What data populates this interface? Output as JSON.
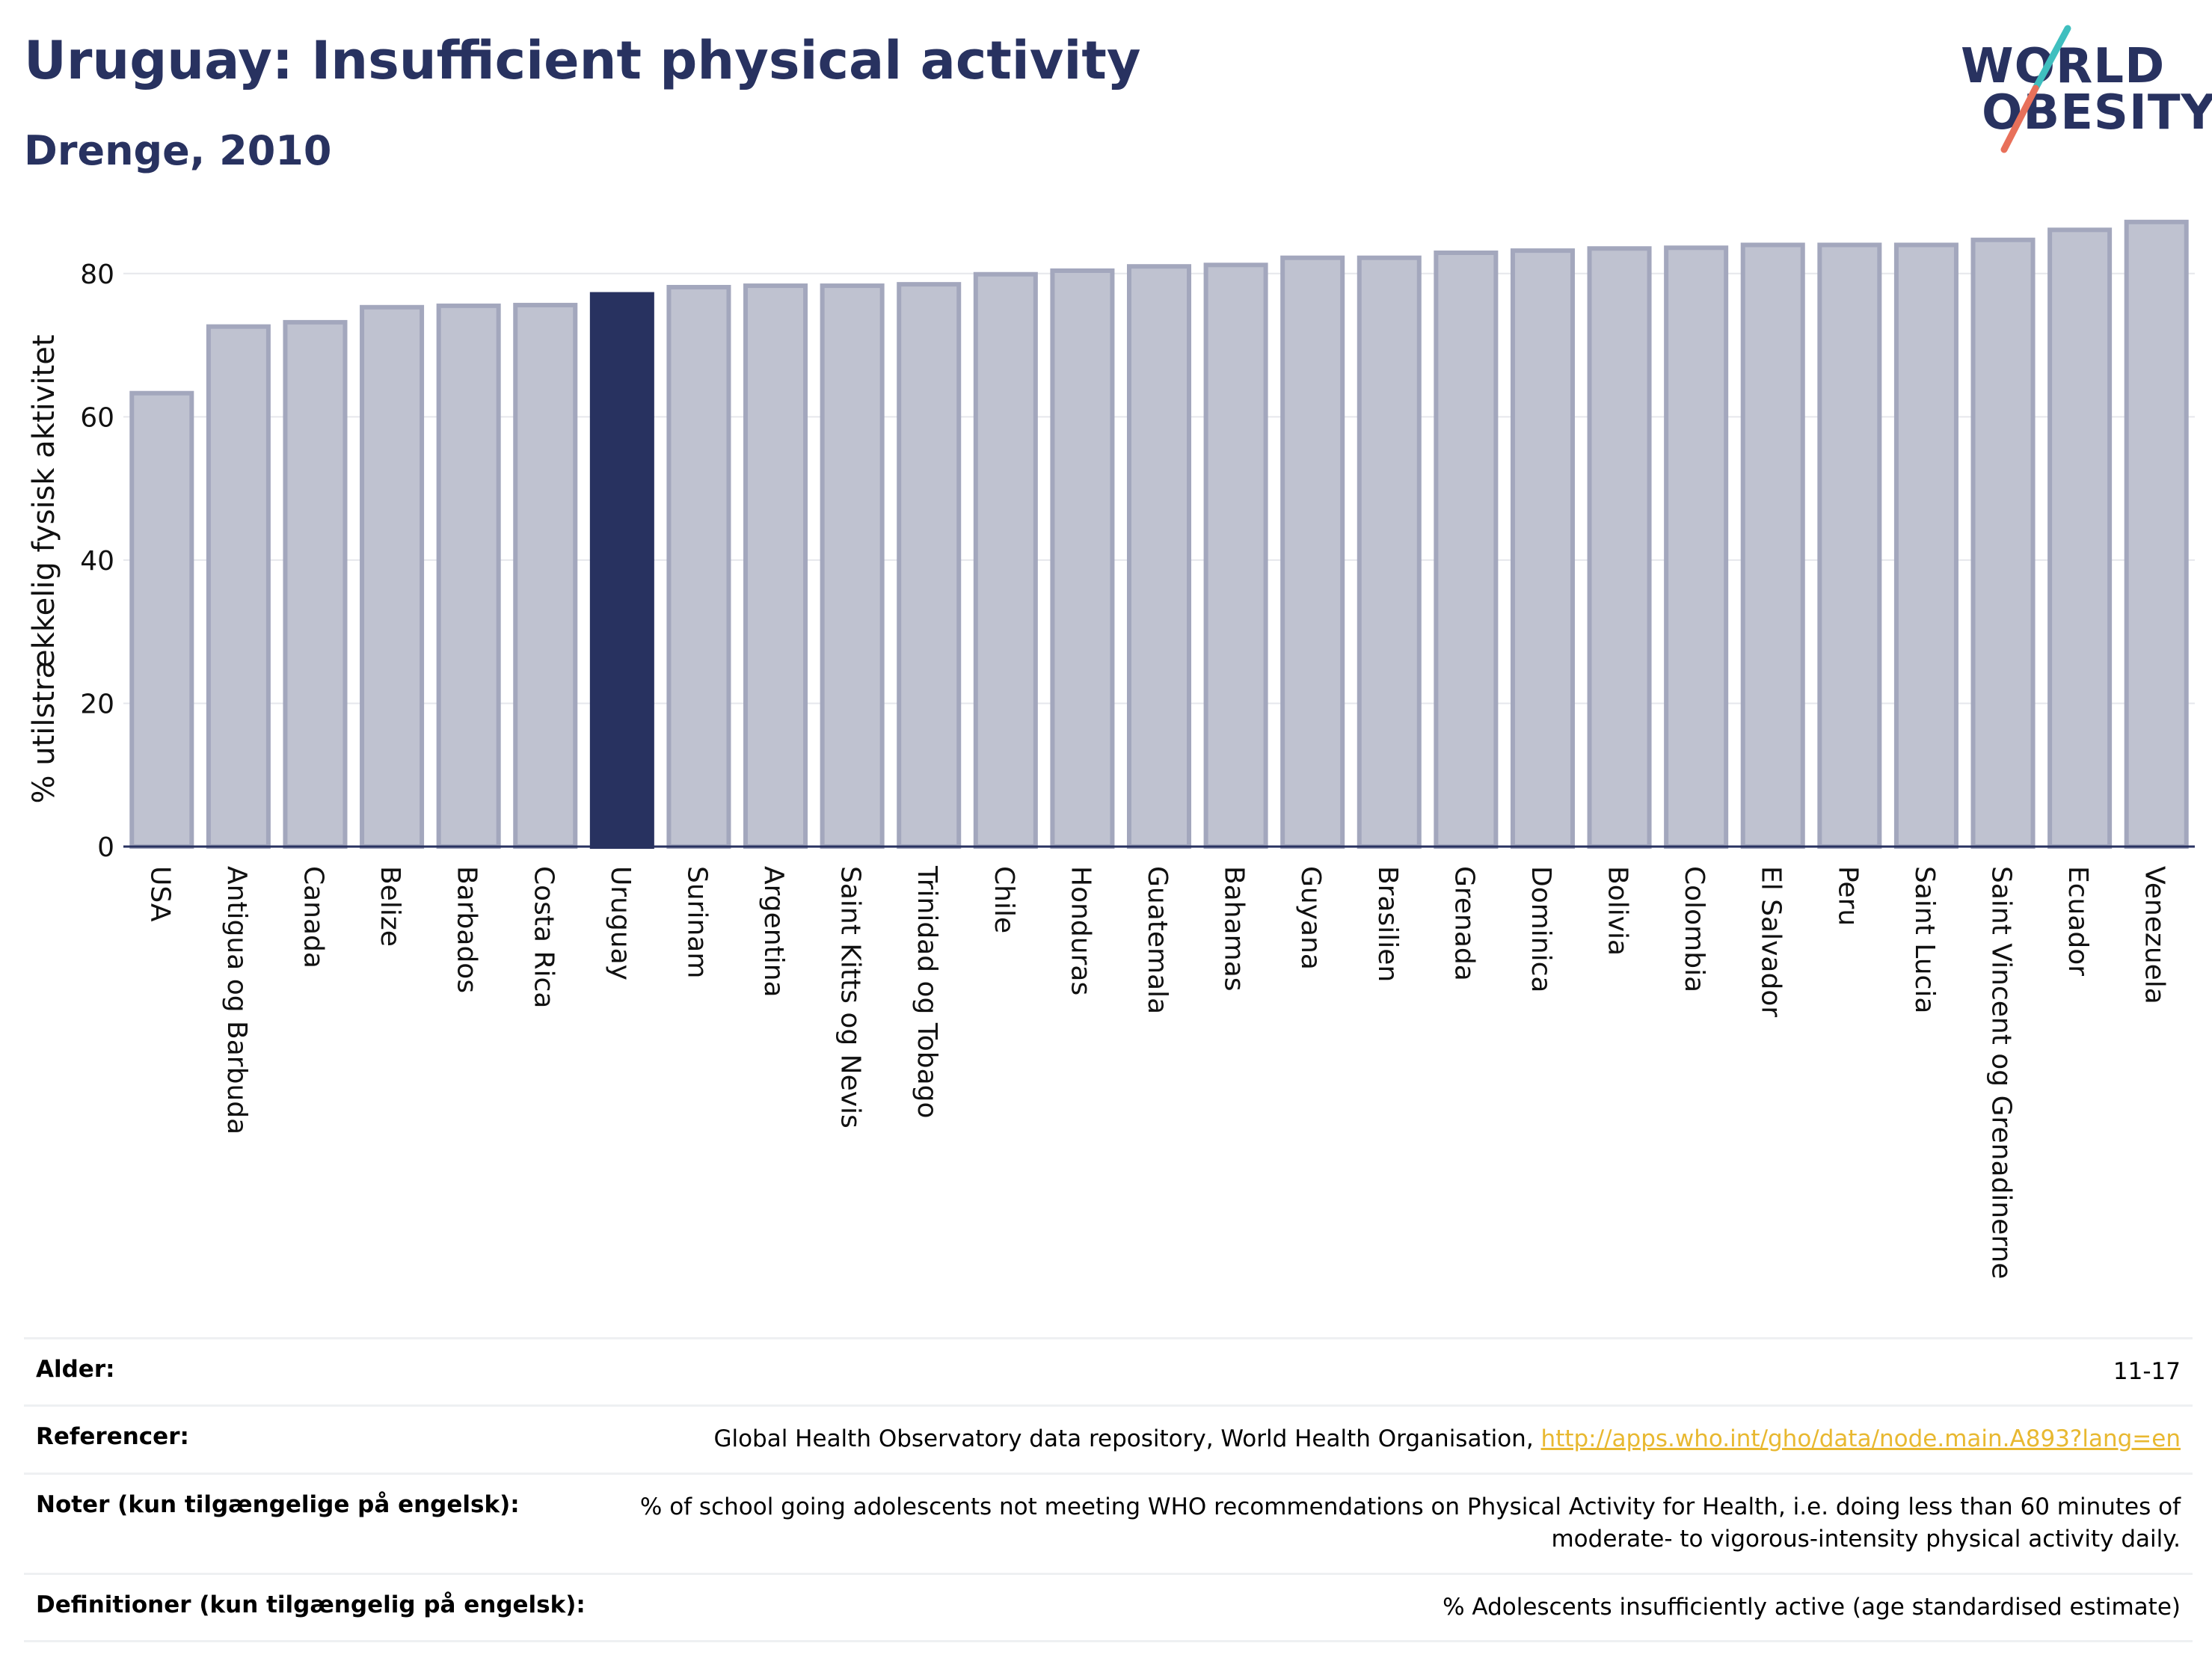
{
  "header": {
    "title": "Uruguay: Insufficient physical activity",
    "subtitle": "Drenge, 2010"
  },
  "logo": {
    "line1": "WORLD",
    "line2": "OBESITY",
    "colors": {
      "navy": "#283260",
      "teal": "#3fbfbf",
      "coral": "#e8705a"
    }
  },
  "chart_data": {
    "type": "bar",
    "ylabel": "% utilstrækkelig fysisk aktivitet",
    "ylim": [
      0,
      90
    ],
    "yticks": [
      0,
      20,
      40,
      60,
      80
    ],
    "grid": true,
    "highlight": "Uruguay",
    "colors": {
      "bar": "#bfc2d0",
      "bar_edge": "#a3a7bd",
      "highlight": "#283260",
      "grid": "#e6e7ec",
      "axis": "#283260"
    },
    "categories": [
      "USA",
      "Antigua og Barbuda",
      "Canada",
      "Belize",
      "Barbados",
      "Costa Rica",
      "Uruguay",
      "Surinam",
      "Argentina",
      "Saint Kitts og Nevis",
      "Trinidad og Tobago",
      "Chile",
      "Honduras",
      "Guatemala",
      "Bahamas",
      "Guyana",
      "Brasilien",
      "Grenada",
      "Dominica",
      "Bolivia",
      "Colombia",
      "El Salvador",
      "Peru",
      "Saint Lucia",
      "Saint Vincent og Grenadinerne",
      "Ecuador",
      "Venezuela"
    ],
    "values": [
      63.3,
      72.6,
      73.2,
      75.3,
      75.5,
      75.6,
      77.1,
      78.1,
      78.3,
      78.3,
      78.5,
      79.9,
      80.4,
      81.0,
      81.2,
      82.2,
      82.2,
      82.9,
      83.2,
      83.5,
      83.6,
      84.0,
      84.0,
      84.0,
      84.7,
      86.1,
      87.2
    ]
  },
  "info_table": {
    "age_label": "Alder:",
    "age_value": "11-17",
    "ref_label": "Referencer:",
    "ref_text": "Global Health Observatory data repository, World Health Organisation, ",
    "ref_link": "http://apps.who.int/gho/data/node.main.A893?lang=en",
    "notes_label": "Noter (kun tilgængelige på engelsk):",
    "notes_value": "% of school going adolescents not meeting WHO recommendations on Physical Activity for Health, i.e. doing less than 60 minutes of moderate- to vigorous-intensity physical activity daily.",
    "def_label": "Definitioner (kun tilgængelig på engelsk):",
    "def_value": "% Adolescents insufficiently active (age standardised estimate)"
  }
}
